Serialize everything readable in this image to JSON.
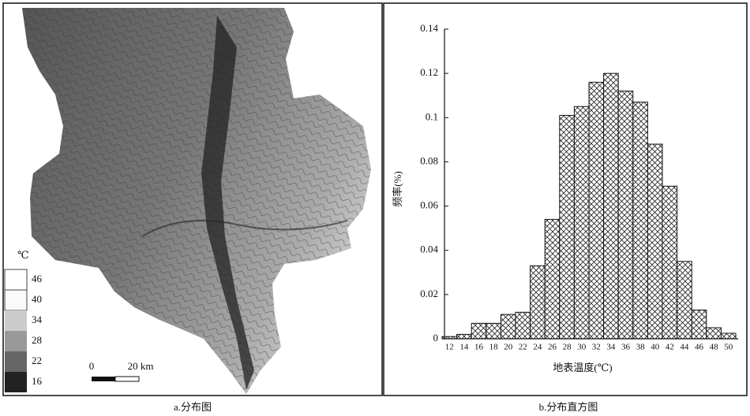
{
  "chart_data": {
    "type": "bar",
    "ylabel": "频率(%)",
    "xlabel": "地表温度(℃)",
    "categories": [
      "12",
      "14",
      "16",
      "18",
      "20",
      "22",
      "24",
      "26",
      "28",
      "30",
      "32",
      "34",
      "36",
      "38",
      "40",
      "42",
      "44",
      "46",
      "48",
      "50"
    ],
    "values": [
      0.001,
      0.002,
      0.007,
      0.007,
      0.011,
      0.012,
      0.033,
      0.054,
      0.101,
      0.105,
      0.116,
      0.12,
      0.112,
      0.107,
      0.088,
      0.069,
      0.035,
      0.013,
      0.005,
      0.0025
    ],
    "color": "#ffffff",
    "ylim": [
      0,
      0.14
    ],
    "yticks": [
      0,
      0.02,
      0.04,
      0.06,
      0.08,
      0.1,
      0.12,
      0.14
    ],
    "grid": false
  },
  "map": {
    "legend": {
      "unit": "℃",
      "labels": [
        "46",
        "40",
        "34",
        "28",
        "22",
        "16"
      ]
    },
    "scale_bar": {
      "start": "0",
      "end": "20 km"
    }
  },
  "captions": [
    "a.分布图",
    "b.分布直方图"
  ]
}
